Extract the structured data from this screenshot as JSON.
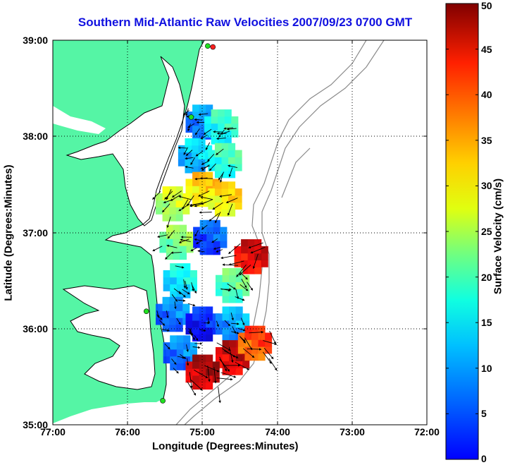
{
  "title": "Southern Mid-Atlantic Raw Velocities 2007/09/23 0700 GMT",
  "xlabel": "Longitude (Degrees:Minutes)",
  "ylabel": "Latitude (Degrees:Minutes)",
  "colorbar_label": "Surface Velocity (cm/s)",
  "x_ticks": [
    "77:00",
    "76:00",
    "75:00",
    "74:00",
    "73:00",
    "72:00"
  ],
  "y_ticks": [
    "39:00",
    "38:00",
    "37:00",
    "36:00",
    "35:00"
  ],
  "colorbar_ticks": [
    "50",
    "45",
    "40",
    "35",
    "30",
    "25",
    "20",
    "15",
    "10",
    "5",
    "0"
  ],
  "colors": {
    "land": "#55f5a5",
    "water": "#ffffff",
    "grid": "#000000",
    "coastline": "#000000",
    "bathymetry": "#8a8a8a",
    "arrow": "#000000",
    "title": "#1010e0"
  },
  "map": {
    "lon_range": [
      -77,
      -72
    ],
    "lat_range": [
      35,
      39
    ],
    "colormap": "jet",
    "velocity_range_cm_s": [
      0,
      50
    ],
    "grid": true,
    "stations": [
      {
        "name": "station-north-red",
        "lon": -74.86,
        "lat": 38.93,
        "color": "#ff2020"
      },
      {
        "name": "station-north-green",
        "lon": -74.93,
        "lat": 38.94,
        "color": "#20e020"
      },
      {
        "name": "station-delmarva",
        "lon": -75.15,
        "lat": 38.2,
        "color": "#20e020"
      },
      {
        "name": "station-duck",
        "lon": -75.75,
        "lat": 36.18,
        "color": "#20e020"
      },
      {
        "name": "station-hatteras",
        "lon": -75.53,
        "lat": 35.25,
        "color": "#20e020"
      }
    ],
    "velocity_zones": [
      {
        "lon": -75.0,
        "lat": 38.15,
        "speed": 13
      },
      {
        "lon": -74.75,
        "lat": 38.1,
        "speed": 20
      },
      {
        "lon": -75.1,
        "lat": 37.8,
        "speed": 16
      },
      {
        "lon": -74.7,
        "lat": 37.75,
        "speed": 21
      },
      {
        "lon": -75.0,
        "lat": 37.45,
        "speed": 33
      },
      {
        "lon": -74.7,
        "lat": 37.35,
        "speed": 32
      },
      {
        "lon": -75.4,
        "lat": 37.3,
        "speed": 28
      },
      {
        "lon": -75.35,
        "lat": 36.9,
        "speed": 25
      },
      {
        "lon": -74.9,
        "lat": 36.95,
        "speed": 10
      },
      {
        "lon": -74.35,
        "lat": 36.75,
        "speed": 45
      },
      {
        "lon": -74.6,
        "lat": 36.45,
        "speed": 23
      },
      {
        "lon": -75.3,
        "lat": 36.5,
        "speed": 18
      },
      {
        "lon": -75.4,
        "lat": 36.15,
        "speed": 12
      },
      {
        "lon": -75.0,
        "lat": 36.05,
        "speed": 7
      },
      {
        "lon": -74.6,
        "lat": 36.05,
        "speed": 14
      },
      {
        "lon": -75.3,
        "lat": 35.75,
        "speed": 12
      },
      {
        "lon": -74.6,
        "lat": 35.7,
        "speed": 46
      },
      {
        "lon": -75.0,
        "lat": 35.55,
        "speed": 47
      },
      {
        "lon": -74.3,
        "lat": 35.85,
        "speed": 40
      }
    ]
  }
}
